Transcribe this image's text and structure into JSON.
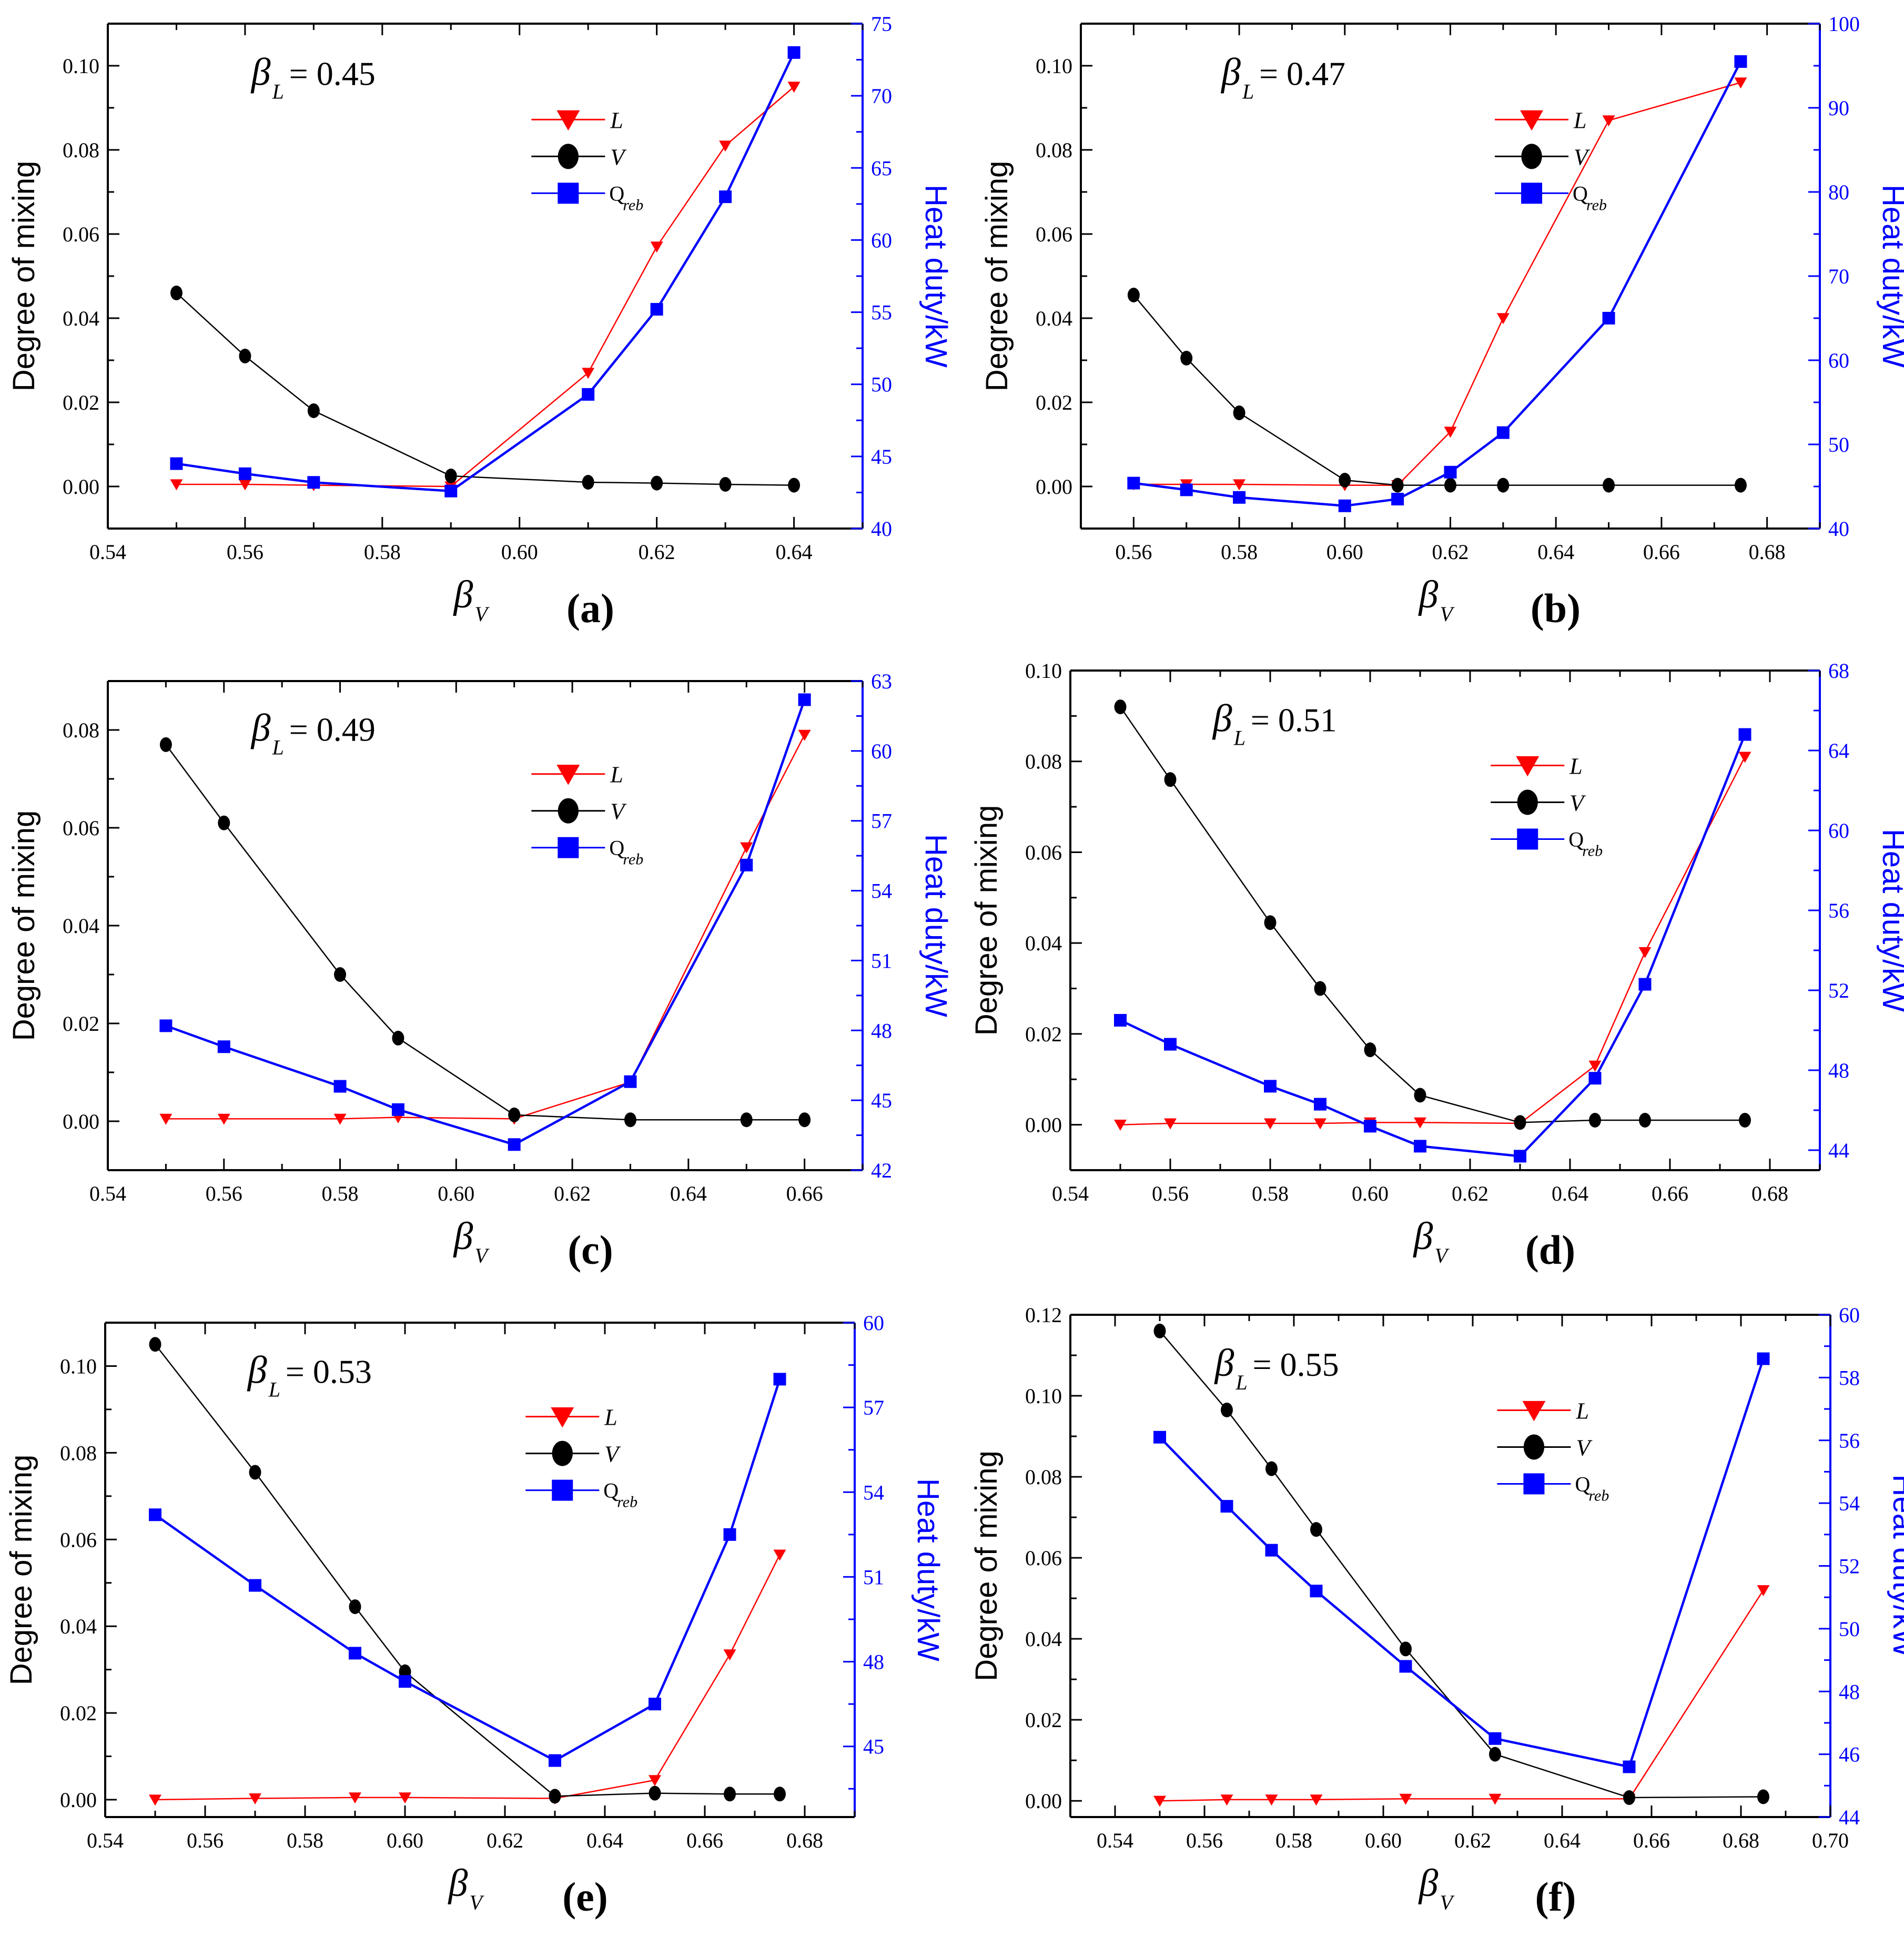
{
  "figure": {
    "legend_labels": {
      "L": "L",
      "V": "V",
      "Q": "Q",
      "Q_sub": "reb"
    },
    "ylabel_left": "Degree of mixing",
    "ylabel_right": "Heat duty/kW",
    "beta_symbol": "β",
    "sub_L": "L",
    "sub_V": "V",
    "colors": {
      "L": "#ff0000",
      "V": "#000000",
      "Q": "#0000ff",
      "axis": "#000000",
      "right_axis": "#0000ff"
    }
  },
  "chart_data": [
    {
      "type": "line",
      "panel_label": "(a)",
      "beta_L_value": "= 0.45",
      "xlabel": "β_V",
      "ylabel": "Degree of mixing",
      "y2label": "Heat duty/kW",
      "xlim": [
        0.54,
        0.65
      ],
      "xticks": [
        "0.54",
        "0.56",
        "0.58",
        "0.60",
        "0.62",
        "0.64"
      ],
      "ylim": [
        -0.01,
        0.11
      ],
      "yticks": [
        "0.00",
        "0.02",
        "0.04",
        "0.06",
        "0.08",
        "0.10"
      ],
      "y2lim": [
        40,
        75
      ],
      "y2ticks": [
        "40",
        "45",
        "50",
        "55",
        "60",
        "65",
        "70",
        "75"
      ],
      "series": [
        {
          "name": "L",
          "x": [
            0.55,
            0.56,
            0.57,
            0.59,
            0.61,
            0.62,
            0.63,
            0.64
          ],
          "values": [
            0.0005,
            0.0005,
            0.0003,
            0.0,
            0.027,
            0.057,
            0.081,
            0.095
          ]
        },
        {
          "name": "V",
          "x": [
            0.55,
            0.56,
            0.57,
            0.59,
            0.61,
            0.62,
            0.63,
            0.64
          ],
          "values": [
            0.046,
            0.031,
            0.018,
            0.0025,
            0.001,
            0.0008,
            0.0005,
            0.0003
          ]
        },
        {
          "name": "Qreb",
          "axis": "right",
          "x": [
            0.55,
            0.56,
            0.57,
            0.59,
            0.61,
            0.62,
            0.63,
            0.64
          ],
          "values": [
            44.5,
            43.8,
            43.2,
            42.6,
            49.3,
            55.2,
            63.0,
            73.0
          ]
        }
      ]
    },
    {
      "type": "line",
      "panel_label": "(b)",
      "beta_L_value": "= 0.47",
      "xlabel": "β_V",
      "ylabel": "Degree of mixing",
      "y2label": "Heat duty/kW",
      "xlim": [
        0.55,
        0.69
      ],
      "xticks": [
        "0.56",
        "0.58",
        "0.60",
        "0.62",
        "0.64",
        "0.66",
        "0.68"
      ],
      "ylim": [
        -0.01,
        0.11
      ],
      "yticks": [
        "0.00",
        "0.02",
        "0.04",
        "0.06",
        "0.08",
        "0.10"
      ],
      "y2lim": [
        40,
        100
      ],
      "y2ticks": [
        "40",
        "50",
        "60",
        "70",
        "80",
        "90",
        "100"
      ],
      "series": [
        {
          "name": "L",
          "x": [
            0.56,
            0.57,
            0.58,
            0.6,
            0.61,
            0.62,
            0.63,
            0.65,
            0.675
          ],
          "values": [
            0.0005,
            0.0005,
            0.0005,
            0.0003,
            0.0003,
            0.013,
            0.04,
            0.087,
            0.096
          ]
        },
        {
          "name": "V",
          "x": [
            0.56,
            0.57,
            0.58,
            0.6,
            0.61,
            0.62,
            0.63,
            0.65,
            0.675
          ],
          "values": [
            0.0455,
            0.0305,
            0.0175,
            0.0015,
            0.0003,
            0.0003,
            0.0003,
            0.0003,
            0.0003
          ]
        },
        {
          "name": "Qreb",
          "axis": "right",
          "x": [
            0.56,
            0.57,
            0.58,
            0.6,
            0.61,
            0.62,
            0.63,
            0.65,
            0.675
          ],
          "values": [
            45.4,
            44.6,
            43.7,
            42.7,
            43.5,
            46.7,
            51.4,
            65.0,
            95.5
          ]
        }
      ]
    },
    {
      "type": "line",
      "panel_label": "(c)",
      "beta_L_value": "= 0.49",
      "xlabel": "β_V",
      "ylabel": "Degree of mixing",
      "y2label": "Heat duty/kW",
      "xlim": [
        0.54,
        0.67
      ],
      "xticks": [
        "0.54",
        "0.56",
        "0.58",
        "0.60",
        "0.62",
        "0.64",
        "0.66"
      ],
      "ylim": [
        -0.01,
        0.09
      ],
      "yticks": [
        "0.00",
        "0.02",
        "0.04",
        "0.06",
        "0.08"
      ],
      "y2lim": [
        42,
        63
      ],
      "y2ticks": [
        "42",
        "45",
        "48",
        "51",
        "54",
        "57",
        "60",
        "63"
      ],
      "series": [
        {
          "name": "L",
          "x": [
            0.55,
            0.56,
            0.58,
            0.59,
            0.61,
            0.63,
            0.65,
            0.66
          ],
          "values": [
            0.0005,
            0.0005,
            0.0005,
            0.0008,
            0.0005,
            0.008,
            0.056,
            0.079
          ]
        },
        {
          "name": "V",
          "x": [
            0.55,
            0.56,
            0.58,
            0.59,
            0.61,
            0.63,
            0.65,
            0.66
          ],
          "values": [
            0.077,
            0.061,
            0.03,
            0.017,
            0.0013,
            0.0003,
            0.0003,
            0.0003
          ]
        },
        {
          "name": "Qreb",
          "axis": "right",
          "x": [
            0.55,
            0.56,
            0.58,
            0.59,
            0.61,
            0.63,
            0.65,
            0.66
          ],
          "values": [
            48.2,
            47.3,
            45.6,
            44.6,
            43.1,
            45.8,
            55.1,
            62.2
          ]
        }
      ]
    },
    {
      "type": "line",
      "panel_label": "(d)",
      "beta_L_value": "= 0.51",
      "xlabel": "β_V",
      "ylabel": "Degree of mixing",
      "y2label": "Heat duty/kW",
      "xlim": [
        0.54,
        0.69
      ],
      "xticks": [
        "0.54",
        "0.56",
        "0.58",
        "0.60",
        "0.62",
        "0.64",
        "0.66",
        "0.68"
      ],
      "ylim": [
        -0.01,
        0.1
      ],
      "yticks": [
        "0.00",
        "0.02",
        "0.04",
        "0.06",
        "0.08",
        "0.10"
      ],
      "y2lim": [
        43,
        68
      ],
      "y2ticks": [
        "44",
        "48",
        "52",
        "56",
        "60",
        "64",
        "68"
      ],
      "series": [
        {
          "name": "L",
          "x": [
            0.55,
            0.56,
            0.58,
            0.59,
            0.6,
            0.61,
            0.63,
            0.645,
            0.655,
            0.675
          ],
          "values": [
            0.0,
            0.0003,
            0.0003,
            0.0003,
            0.0005,
            0.0005,
            0.0003,
            0.013,
            0.038,
            0.081
          ]
        },
        {
          "name": "V",
          "x": [
            0.55,
            0.56,
            0.58,
            0.59,
            0.6,
            0.61,
            0.63,
            0.645,
            0.655,
            0.675
          ],
          "values": [
            0.092,
            0.076,
            0.0445,
            0.03,
            0.0165,
            0.0065,
            0.0005,
            0.001,
            0.001,
            0.001
          ]
        },
        {
          "name": "Qreb",
          "axis": "right",
          "x": [
            0.55,
            0.56,
            0.58,
            0.59,
            0.6,
            0.61,
            0.63,
            0.645,
            0.655,
            0.675
          ],
          "values": [
            50.5,
            49.3,
            47.2,
            46.3,
            45.2,
            44.2,
            43.7,
            47.6,
            52.3,
            64.8
          ]
        }
      ]
    },
    {
      "type": "line",
      "panel_label": "(e)",
      "beta_L_value": "= 0.53",
      "xlabel": "β_V",
      "ylabel": "Degree of mixing",
      "y2label": "Heat duty/kW",
      "xlim": [
        0.54,
        0.69
      ],
      "xticks": [
        "0.54",
        "0.56",
        "0.58",
        "0.60",
        "0.62",
        "0.64",
        "0.66",
        "0.68"
      ],
      "ylim": [
        -0.004,
        0.11
      ],
      "yticks": [
        "0.00",
        "0.02",
        "0.04",
        "0.06",
        "0.08",
        "0.10"
      ],
      "y2lim": [
        42.5,
        60
      ],
      "y2ticks": [
        "45",
        "48",
        "51",
        "54",
        "57",
        "60"
      ],
      "series": [
        {
          "name": "L",
          "x": [
            0.55,
            0.57,
            0.59,
            0.6,
            0.63,
            0.65,
            0.665,
            0.675
          ],
          "values": [
            0.0,
            0.0003,
            0.0005,
            0.0005,
            0.0003,
            0.0045,
            0.0335,
            0.0565
          ]
        },
        {
          "name": "V",
          "x": [
            0.55,
            0.57,
            0.59,
            0.6,
            0.63,
            0.65,
            0.665,
            0.675
          ],
          "values": [
            0.105,
            0.0755,
            0.0445,
            0.0295,
            0.0008,
            0.0015,
            0.0013,
            0.0013
          ]
        },
        {
          "name": "Qreb",
          "axis": "right",
          "x": [
            0.55,
            0.57,
            0.59,
            0.6,
            0.63,
            0.65,
            0.665,
            0.675
          ],
          "values": [
            53.2,
            50.7,
            48.3,
            47.3,
            44.5,
            46.5,
            52.5,
            58.0
          ]
        }
      ]
    },
    {
      "type": "line",
      "panel_label": "(f)",
      "beta_L_value": "= 0.55",
      "xlabel": "β_V",
      "ylabel": "Degree of mixing",
      "y2label": "Heat duty/kW",
      "xlim": [
        0.53,
        0.7
      ],
      "xticks": [
        "0.54",
        "0.56",
        "0.58",
        "0.60",
        "0.62",
        "0.64",
        "0.66",
        "0.68",
        "0.70"
      ],
      "ylim": [
        -0.004,
        0.12
      ],
      "yticks": [
        "0.00",
        "0.02",
        "0.04",
        "0.06",
        "0.08",
        "0.10",
        "0.12"
      ],
      "y2lim": [
        44,
        60
      ],
      "y2ticks": [
        "44",
        "46",
        "48",
        "50",
        "52",
        "54",
        "56",
        "58",
        "60"
      ],
      "series": [
        {
          "name": "L",
          "x": [
            0.55,
            0.565,
            0.575,
            0.585,
            0.605,
            0.625,
            0.655,
            0.685
          ],
          "values": [
            0.0,
            0.0003,
            0.0003,
            0.0003,
            0.0005,
            0.0005,
            0.0005,
            0.052
          ]
        },
        {
          "name": "V",
          "x": [
            0.55,
            0.565,
            0.575,
            0.585,
            0.605,
            0.625,
            0.655,
            0.685
          ],
          "values": [
            0.116,
            0.0965,
            0.082,
            0.067,
            0.0375,
            0.0115,
            0.0008,
            0.001
          ]
        },
        {
          "name": "Qreb",
          "axis": "right",
          "x": [
            0.55,
            0.565,
            0.575,
            0.585,
            0.605,
            0.625,
            0.655,
            0.685
          ],
          "values": [
            56.1,
            53.9,
            52.5,
            51.2,
            48.8,
            46.5,
            45.6,
            58.6
          ]
        }
      ]
    }
  ]
}
